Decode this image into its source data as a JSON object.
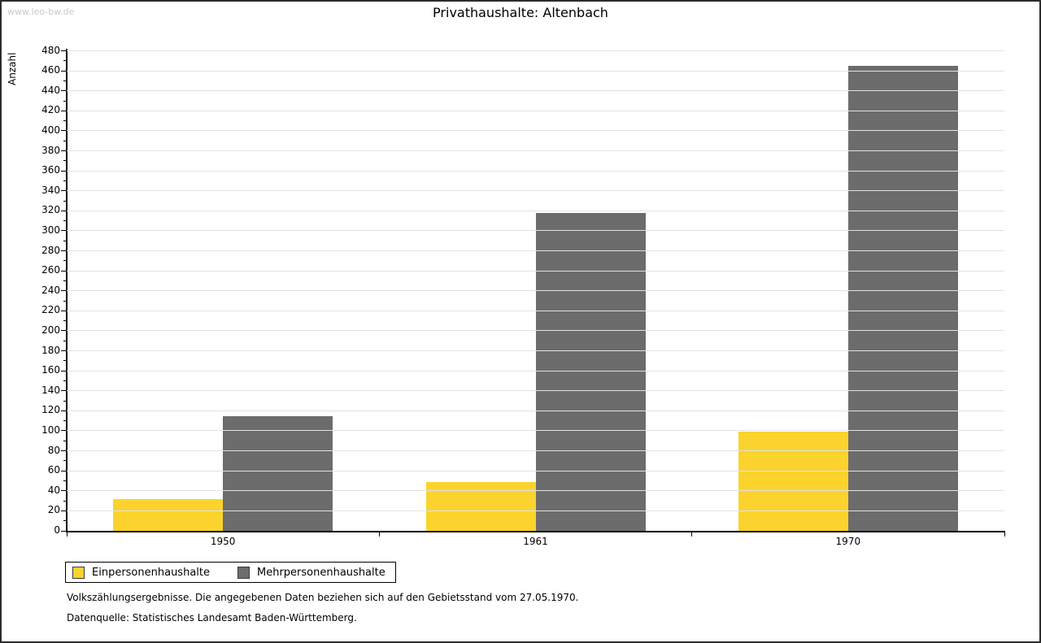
{
  "watermark": "www.leo-bw.de",
  "title": "Privathaushalte: Altenbach",
  "chart_data": {
    "type": "bar",
    "title": "Privathaushalte: Altenbach",
    "categories": [
      "1950",
      "1961",
      "1970"
    ],
    "series": [
      {
        "name": "Einpersonenhaushalte",
        "color": "#FBD32C",
        "values": [
          32,
          49,
          99
        ]
      },
      {
        "name": "Mehrpersonenhaushalte",
        "color": "#6C6C6C",
        "values": [
          115,
          318,
          465
        ]
      }
    ],
    "xlabel": "",
    "ylabel": "Anzahl",
    "ylim": [
      0,
      480
    ],
    "ytick_step": 20,
    "yminor_step": 10,
    "grid": true,
    "gridline_color": "#E2E2E2",
    "legend_position": "bottom-left"
  },
  "footer": {
    "line1": "Volkszählungsergebnisse. Die angegebenen Daten beziehen sich auf den Gebietsstand vom 27.05.1970.",
    "line2": "Datenquelle: Statistisches Landesamt Baden-Württemberg."
  }
}
